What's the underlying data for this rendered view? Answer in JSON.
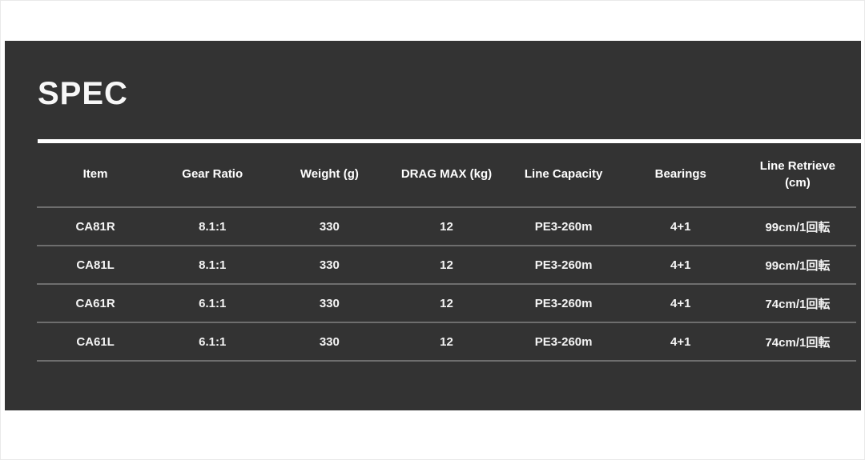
{
  "section": {
    "title": "SPEC"
  },
  "colors": {
    "panel_background": "#333333",
    "title_text": "#f7f7f7",
    "underline": "#ffffff",
    "row_separator": "#6e6e6e",
    "cell_text": "#f4f4f4",
    "page_background": "#ffffff"
  },
  "table": {
    "columns": [
      "Item",
      "Gear Ratio",
      "Weight (g)",
      "DRAG MAX (kg)",
      "Line Capacity",
      "Bearings",
      "Line Retrieve\n(cm)"
    ],
    "rows": [
      [
        "CA81R",
        "8.1:1",
        "330",
        "12",
        "PE3-260m",
        "4+1",
        "99cm/1回転"
      ],
      [
        "CA81L",
        "8.1:1",
        "330",
        "12",
        "PE3-260m",
        "4+1",
        "99cm/1回転"
      ],
      [
        "CA61R",
        "6.1:1",
        "330",
        "12",
        "PE3-260m",
        "4+1",
        "74cm/1回転"
      ],
      [
        "CA61L",
        "6.1:1",
        "330",
        "12",
        "PE3-260m",
        "4+1",
        "74cm/1回転"
      ]
    ]
  }
}
